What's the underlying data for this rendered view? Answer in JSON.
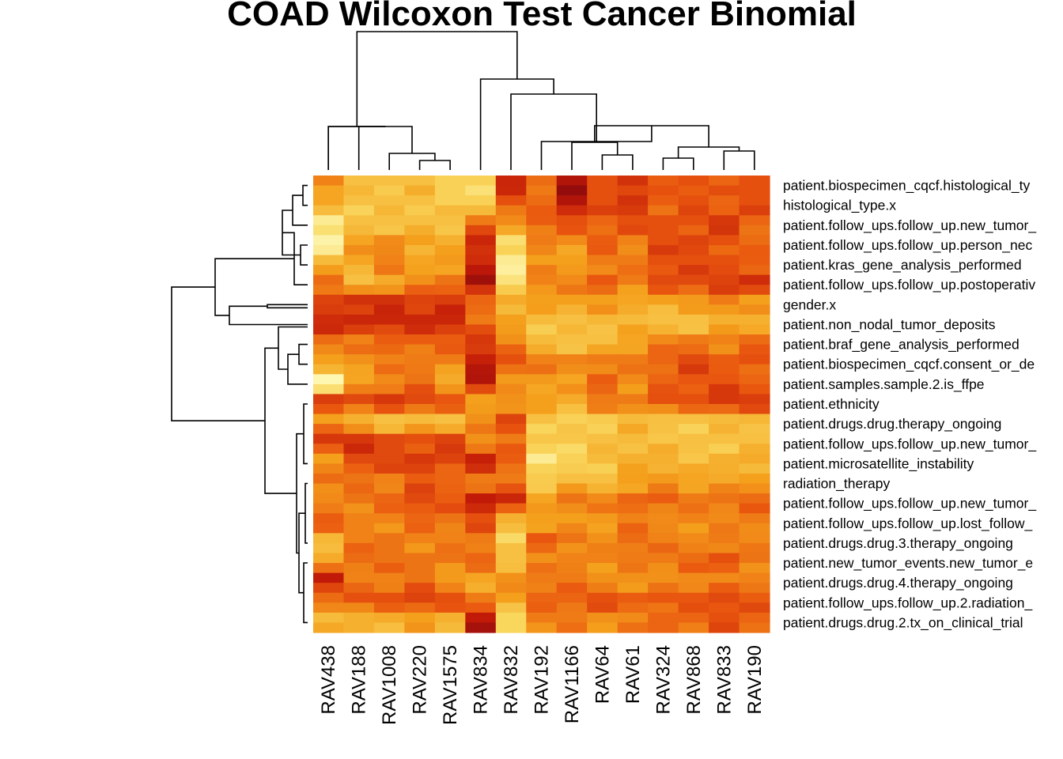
{
  "chart_data": {
    "type": "heatmap",
    "title": "COAD Wilcoxon Test Cancer Binomial",
    "colormap": [
      "#FFFFC8",
      "#F9D65C",
      "#F4A01C",
      "#E9560F",
      "#C21A08",
      "#6E0010"
    ],
    "columns": [
      "RAV438",
      "RAV188",
      "RAV1008",
      "RAV220",
      "RAV1575",
      "RAV834",
      "RAV832",
      "RAV192",
      "RAV1166",
      "RAV64",
      "RAV61",
      "RAV324",
      "RAV868",
      "RAV833",
      "RAV190"
    ],
    "row_labels": [
      "patient.biospecimen_cqcf.histological_ty",
      "histological_type.x",
      "patient.follow_ups.follow_up.new_tumor_",
      "patient.follow_ups.follow_up.person_nec",
      "patient.kras_gene_analysis_performed",
      "patient.follow_ups.follow_up.postoperativ",
      "gender.x",
      "patient.non_nodal_tumor_deposits",
      "patient.braf_gene_analysis_performed",
      "patient.biospecimen_cqcf.consent_or_de",
      "patient.samples.sample.2.is_ffpe",
      "patient.ethnicity",
      "patient.drugs.drug.therapy_ongoing",
      "patient.follow_ups.follow_up.new_tumor_",
      "patient.microsatellite_instability",
      "radiation_therapy",
      "patient.follow_ups.follow_up.new_tumor_",
      "patient.follow_ups.follow_up.lost_follow_",
      "patient.drugs.drug.3.therapy_ongoing",
      "patient.new_tumor_events.new_tumor_e",
      "patient.drugs.drug.4.therapy_ongoing",
      "patient.follow_ups.follow_up.2.radiation_",
      "patient.drugs.drug.2.tx_on_clinical_trial"
    ],
    "values": [
      [
        0.48,
        0.28,
        0.28,
        0.28,
        0.22,
        0.22,
        0.76,
        0.54,
        0.84,
        0.62,
        0.72,
        0.58,
        0.62,
        0.56,
        0.62
      ],
      [
        0.38,
        0.28,
        0.28,
        0.28,
        0.22,
        0.22,
        0.62,
        0.54,
        0.84,
        0.62,
        0.72,
        0.58,
        0.62,
        0.56,
        0.62
      ],
      [
        0.1,
        0.28,
        0.28,
        0.28,
        0.28,
        0.5,
        0.46,
        0.58,
        0.62,
        0.56,
        0.62,
        0.62,
        0.62,
        0.7,
        0.56
      ],
      [
        0.06,
        0.38,
        0.46,
        0.4,
        0.34,
        0.76,
        0.16,
        0.5,
        0.46,
        0.58,
        0.48,
        0.62,
        0.66,
        0.62,
        0.54
      ],
      [
        0.3,
        0.38,
        0.48,
        0.38,
        0.42,
        0.74,
        0.1,
        0.4,
        0.4,
        0.5,
        0.5,
        0.62,
        0.62,
        0.62,
        0.58
      ],
      [
        0.54,
        0.28,
        0.36,
        0.44,
        0.52,
        0.88,
        0.14,
        0.48,
        0.46,
        0.6,
        0.5,
        0.64,
        0.64,
        0.66,
        0.74
      ],
      [
        0.66,
        0.72,
        0.72,
        0.66,
        0.68,
        0.56,
        0.36,
        0.4,
        0.4,
        0.4,
        0.38,
        0.4,
        0.42,
        0.5,
        0.4
      ],
      [
        0.74,
        0.76,
        0.76,
        0.76,
        0.76,
        0.5,
        0.4,
        0.3,
        0.28,
        0.32,
        0.3,
        0.28,
        0.28,
        0.34,
        0.34
      ],
      [
        0.54,
        0.48,
        0.58,
        0.58,
        0.58,
        0.7,
        0.44,
        0.3,
        0.28,
        0.28,
        0.38,
        0.46,
        0.5,
        0.48,
        0.54
      ],
      [
        0.4,
        0.44,
        0.48,
        0.5,
        0.5,
        0.78,
        0.62,
        0.48,
        0.48,
        0.5,
        0.5,
        0.56,
        0.64,
        0.58,
        0.62
      ],
      [
        0.04,
        0.38,
        0.46,
        0.52,
        0.36,
        0.84,
        0.42,
        0.42,
        0.38,
        0.58,
        0.46,
        0.56,
        0.6,
        0.6,
        0.56
      ],
      [
        0.68,
        0.64,
        0.7,
        0.64,
        0.6,
        0.4,
        0.44,
        0.4,
        0.36,
        0.5,
        0.5,
        0.62,
        0.62,
        0.7,
        0.68
      ],
      [
        0.4,
        0.34,
        0.28,
        0.3,
        0.28,
        0.44,
        0.66,
        0.28,
        0.22,
        0.24,
        0.3,
        0.28,
        0.28,
        0.3,
        0.32
      ],
      [
        0.7,
        0.7,
        0.64,
        0.62,
        0.66,
        0.44,
        0.5,
        0.26,
        0.26,
        0.28,
        0.3,
        0.26,
        0.28,
        0.28,
        0.28
      ],
      [
        0.4,
        0.64,
        0.64,
        0.7,
        0.66,
        0.78,
        0.58,
        0.1,
        0.22,
        0.3,
        0.34,
        0.34,
        0.26,
        0.34,
        0.36
      ],
      [
        0.54,
        0.52,
        0.48,
        0.58,
        0.56,
        0.5,
        0.5,
        0.24,
        0.28,
        0.28,
        0.4,
        0.42,
        0.38,
        0.36,
        0.4
      ],
      [
        0.46,
        0.52,
        0.56,
        0.64,
        0.58,
        0.8,
        0.76,
        0.38,
        0.52,
        0.46,
        0.56,
        0.58,
        0.5,
        0.52,
        0.54
      ],
      [
        0.58,
        0.48,
        0.48,
        0.56,
        0.52,
        0.62,
        0.34,
        0.4,
        0.4,
        0.42,
        0.48,
        0.46,
        0.48,
        0.46,
        0.5
      ],
      [
        0.32,
        0.48,
        0.52,
        0.48,
        0.48,
        0.5,
        0.18,
        0.6,
        0.52,
        0.44,
        0.54,
        0.48,
        0.46,
        0.5,
        0.46
      ],
      [
        0.36,
        0.54,
        0.52,
        0.52,
        0.52,
        0.56,
        0.28,
        0.44,
        0.48,
        0.48,
        0.5,
        0.5,
        0.54,
        0.62,
        0.52
      ],
      [
        0.8,
        0.48,
        0.48,
        0.52,
        0.42,
        0.38,
        0.44,
        0.5,
        0.5,
        0.44,
        0.44,
        0.44,
        0.46,
        0.46,
        0.48
      ],
      [
        0.54,
        0.62,
        0.62,
        0.66,
        0.62,
        0.5,
        0.4,
        0.56,
        0.56,
        0.62,
        0.58,
        0.6,
        0.6,
        0.64,
        0.58
      ],
      [
        0.3,
        0.34,
        0.36,
        0.4,
        0.34,
        0.8,
        0.2,
        0.5,
        0.5,
        0.44,
        0.46,
        0.56,
        0.56,
        0.62,
        0.56
      ]
    ],
    "row_dendrogram": "yes",
    "column_dendrogram": "yes"
  }
}
